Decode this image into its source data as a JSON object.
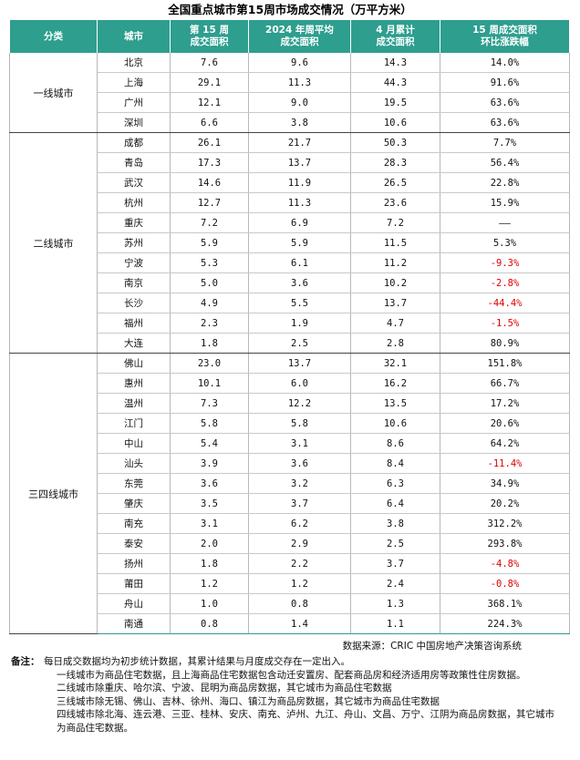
{
  "title": "全国重点城市第15周市场成交情况（万平方米）",
  "headers": [
    {
      "line1": "分类",
      "line2": ""
    },
    {
      "line1": "城市",
      "line2": ""
    },
    {
      "line1": "第 15 周",
      "line2": "成交面积"
    },
    {
      "line1": "2024 年周平均",
      "line2": "成交面积"
    },
    {
      "line1": "4 月累计",
      "line2": "成交面积"
    },
    {
      "line1": "15 周成交面积",
      "line2": "环比涨跌幅"
    }
  ],
  "groups": [
    {
      "name": "一线城市",
      "rows": [
        {
          "city": "北京",
          "week": "7.6",
          "avg": "9.6",
          "month": "14.3",
          "change": "14.0%"
        },
        {
          "city": "上海",
          "week": "29.1",
          "avg": "11.3",
          "month": "44.3",
          "change": "91.6%"
        },
        {
          "city": "广州",
          "week": "12.1",
          "avg": "9.0",
          "month": "19.5",
          "change": "63.6%"
        },
        {
          "city": "深圳",
          "week": "6.6",
          "avg": "3.8",
          "month": "10.6",
          "change": "63.6%"
        }
      ]
    },
    {
      "name": "二线城市",
      "rows": [
        {
          "city": "成都",
          "week": "26.1",
          "avg": "21.7",
          "month": "50.3",
          "change": "7.7%"
        },
        {
          "city": "青岛",
          "week": "17.3",
          "avg": "13.7",
          "month": "28.3",
          "change": "56.4%"
        },
        {
          "city": "武汉",
          "week": "14.6",
          "avg": "11.9",
          "month": "26.5",
          "change": "22.8%"
        },
        {
          "city": "杭州",
          "week": "12.7",
          "avg": "11.3",
          "month": "23.6",
          "change": "15.9%"
        },
        {
          "city": "重庆",
          "week": "7.2",
          "avg": "6.9",
          "month": "7.2",
          "change": "——"
        },
        {
          "city": "苏州",
          "week": "5.9",
          "avg": "5.9",
          "month": "11.5",
          "change": "5.3%"
        },
        {
          "city": "宁波",
          "week": "5.3",
          "avg": "6.1",
          "month": "11.2",
          "change": "-9.3%"
        },
        {
          "city": "南京",
          "week": "5.0",
          "avg": "3.6",
          "month": "10.2",
          "change": "-2.8%"
        },
        {
          "city": "长沙",
          "week": "4.9",
          "avg": "5.5",
          "month": "13.7",
          "change": "-44.4%"
        },
        {
          "city": "福州",
          "week": "2.3",
          "avg": "1.9",
          "month": "4.7",
          "change": "-1.5%"
        },
        {
          "city": "大连",
          "week": "1.8",
          "avg": "2.5",
          "month": "2.8",
          "change": "80.9%"
        }
      ]
    },
    {
      "name": "三四线城市",
      "rows": [
        {
          "city": "佛山",
          "week": "23.0",
          "avg": "13.7",
          "month": "32.1",
          "change": "151.8%"
        },
        {
          "city": "惠州",
          "week": "10.1",
          "avg": "6.0",
          "month": "16.2",
          "change": "66.7%"
        },
        {
          "city": "温州",
          "week": "7.3",
          "avg": "12.2",
          "month": "13.5",
          "change": "17.2%"
        },
        {
          "city": "江门",
          "week": "5.8",
          "avg": "5.8",
          "month": "10.6",
          "change": "20.6%"
        },
        {
          "city": "中山",
          "week": "5.4",
          "avg": "3.1",
          "month": "8.6",
          "change": "64.2%"
        },
        {
          "city": "汕头",
          "week": "3.9",
          "avg": "3.6",
          "month": "8.4",
          "change": "-11.4%"
        },
        {
          "city": "东莞",
          "week": "3.6",
          "avg": "3.2",
          "month": "6.3",
          "change": "34.9%"
        },
        {
          "city": "肇庆",
          "week": "3.5",
          "avg": "3.7",
          "month": "6.4",
          "change": "20.2%"
        },
        {
          "city": "南充",
          "week": "3.1",
          "avg": "6.2",
          "month": "3.8",
          "change": "312.2%"
        },
        {
          "city": "泰安",
          "week": "2.0",
          "avg": "2.9",
          "month": "2.5",
          "change": "293.8%"
        },
        {
          "city": "扬州",
          "week": "1.8",
          "avg": "2.2",
          "month": "3.7",
          "change": "-4.8%"
        },
        {
          "city": "莆田",
          "week": "1.2",
          "avg": "1.2",
          "month": "2.4",
          "change": "-0.8%"
        },
        {
          "city": "舟山",
          "week": "1.0",
          "avg": "0.8",
          "month": "1.3",
          "change": "368.1%"
        },
        {
          "city": "南通",
          "week": "0.8",
          "avg": "1.4",
          "month": "1.1",
          "change": "224.3%"
        }
      ]
    }
  ],
  "negative_color": "#e00000",
  "header_color": "#2e9e8f",
  "source": "数据来源：CRIC 中国房地产决策咨询系统",
  "notes_label": "备注：",
  "notes": [
    "每日成交数据均为初步统计数据，其累计结果与月度成交存在一定出入。",
    "一线城市为商品住宅数据，且上海商品住宅数据包含动迁安置房、配套商品房和经济适用房等政策性住房数据。",
    "二线城市除重庆、哈尔滨、宁波、昆明为商品房数据，其它城市为商品住宅数据",
    "三线城市除无锡、佛山、吉林、徐州、海口、镇江为商品房数据，其它城市为商品住宅数据",
    "四线城市除北海、连云港、三亚、桂林、安庆、南充、泸州、九江、舟山、文昌、万宁、江阴为商品房数据，其它城市为商品住宅数据。"
  ]
}
